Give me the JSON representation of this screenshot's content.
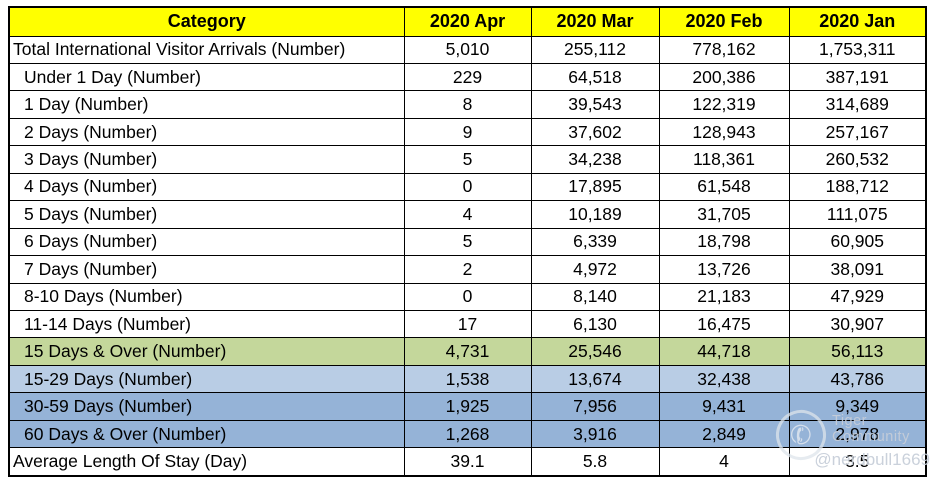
{
  "colors": {
    "header_bg": "#FFFF00",
    "green": "#C4D79B",
    "blue_light": "#B9CDE5",
    "blue_medium": "#95B3D7",
    "border": "#000000",
    "watermark_text": "#C6CDD8"
  },
  "chart_data": {
    "type": "table",
    "columns": [
      "Category",
      "2020 Apr",
      "2020 Mar",
      "2020 Feb",
      "2020 Jan"
    ],
    "rows": [
      {
        "category": "Total International Visitor Arrivals (Number)",
        "indent": false,
        "highlight": "none",
        "values": [
          "5,010",
          "255,112",
          "778,162",
          "1,753,311"
        ]
      },
      {
        "category": "Under 1 Day (Number)",
        "indent": true,
        "highlight": "none",
        "values": [
          "229",
          "64,518",
          "200,386",
          "387,191"
        ]
      },
      {
        "category": "1 Day (Number)",
        "indent": true,
        "highlight": "none",
        "values": [
          "8",
          "39,543",
          "122,319",
          "314,689"
        ]
      },
      {
        "category": "2 Days (Number)",
        "indent": true,
        "highlight": "none",
        "values": [
          "9",
          "37,602",
          "128,943",
          "257,167"
        ]
      },
      {
        "category": "3 Days (Number)",
        "indent": true,
        "highlight": "none",
        "values": [
          "5",
          "34,238",
          "118,361",
          "260,532"
        ]
      },
      {
        "category": "4 Days (Number)",
        "indent": true,
        "highlight": "none",
        "values": [
          "0",
          "17,895",
          "61,548",
          "188,712"
        ]
      },
      {
        "category": "5 Days (Number)",
        "indent": true,
        "highlight": "none",
        "values": [
          "4",
          "10,189",
          "31,705",
          "111,075"
        ]
      },
      {
        "category": "6 Days (Number)",
        "indent": true,
        "highlight": "none",
        "values": [
          "5",
          "6,339",
          "18,798",
          "60,905"
        ]
      },
      {
        "category": "7 Days (Number)",
        "indent": true,
        "highlight": "none",
        "values": [
          "2",
          "4,972",
          "13,726",
          "38,091"
        ]
      },
      {
        "category": "8-10 Days (Number)",
        "indent": true,
        "highlight": "none",
        "values": [
          "0",
          "8,140",
          "21,183",
          "47,929"
        ]
      },
      {
        "category": "11-14 Days (Number)",
        "indent": true,
        "highlight": "none",
        "values": [
          "17",
          "6,130",
          "16,475",
          "30,907"
        ]
      },
      {
        "category": "15 Days & Over (Number)",
        "indent": true,
        "highlight": "green",
        "values": [
          "4,731",
          "25,546",
          "44,718",
          "56,113"
        ]
      },
      {
        "category": "15-29 Days (Number)",
        "indent": true,
        "highlight": "blue_light",
        "values": [
          "1,538",
          "13,674",
          "32,438",
          "43,786"
        ]
      },
      {
        "category": "30-59 Days (Number)",
        "indent": true,
        "highlight": "blue_medium",
        "values": [
          "1,925",
          "7,956",
          "9,431",
          "9,349"
        ]
      },
      {
        "category": "60 Days & Over (Number)",
        "indent": true,
        "highlight": "blue_medium",
        "values": [
          "1,268",
          "3,916",
          "2,849",
          "2,978"
        ]
      },
      {
        "category": "Average Length Of Stay (Day)",
        "indent": false,
        "highlight": "none",
        "values": [
          "39.1",
          "5.8",
          "4",
          "3.5"
        ]
      }
    ]
  },
  "watermark": {
    "icon": "telephone-icon",
    "icon_glyph": "✆",
    "line1": "Tiger Community",
    "line2": "@nerdbull1669"
  }
}
